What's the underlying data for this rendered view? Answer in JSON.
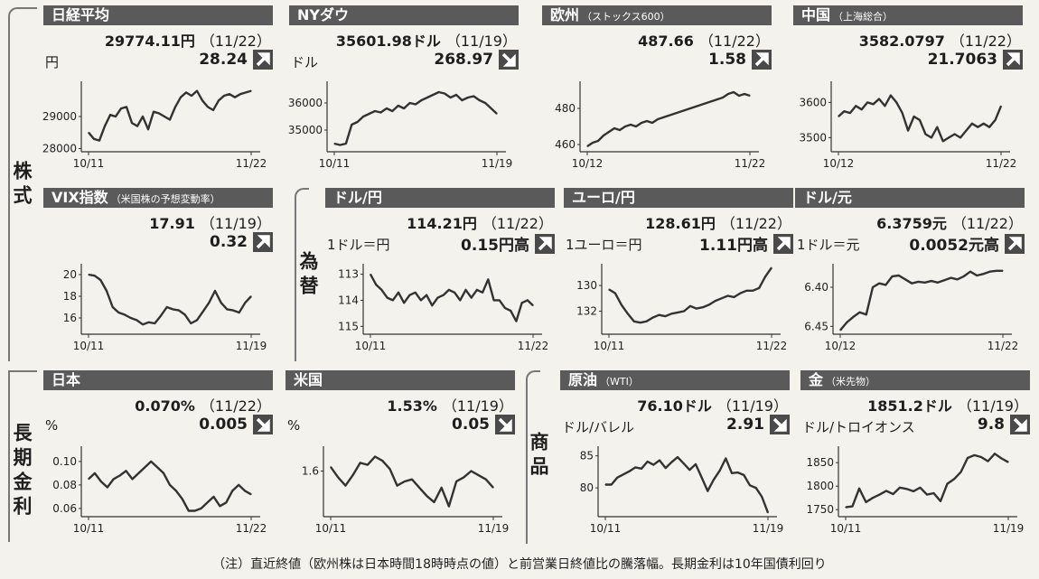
{
  "sections": {
    "stocks": "株式",
    "fx": "為替",
    "rates": "長期金利",
    "commodities": "商品"
  },
  "footnote": "（注）直近終値（欧州株は日本時間18時時点の値）と前営業日終値比の騰落幅。長期金利は10年国債利回り",
  "panels": [
    {
      "id": "nikkei",
      "title": "日経平均",
      "subtitle": "",
      "value": "29774.11円",
      "date": "（11/22）",
      "unit": "円",
      "change": "28.24",
      "direction": "up",
      "chart_data": {
        "type": "line",
        "x_start": "10/11",
        "x_end": "11/22",
        "yticks": [
          "29000",
          "28000"
        ],
        "ylim": [
          27900,
          30100
        ],
        "invert": false,
        "values": [
          28500,
          28300,
          28250,
          28700,
          29050,
          29000,
          29250,
          29300,
          28800,
          28700,
          29000,
          28600,
          29150,
          29100,
          29000,
          28900,
          29300,
          29600,
          29750,
          29650,
          29800,
          29500,
          29300,
          29200,
          29500,
          29650,
          29700,
          29600,
          29700,
          29750,
          29800
        ]
      }
    },
    {
      "id": "nydow",
      "title": "NYダウ",
      "subtitle": "",
      "value": "35601.98ドル",
      "date": "（11/19）",
      "unit": "ドル",
      "change": "268.97",
      "direction": "down",
      "chart_data": {
        "type": "line",
        "x_start": "10/11",
        "x_end": "11/19",
        "yticks": [
          "36000",
          "35000"
        ],
        "ylim": [
          34200,
          36800
        ],
        "invert": false,
        "values": [
          34500,
          34450,
          34500,
          35200,
          35300,
          35500,
          35600,
          35700,
          35650,
          35800,
          35700,
          35900,
          35800,
          36000,
          35950,
          36100,
          36200,
          36300,
          36400,
          36350,
          36200,
          36300,
          36100,
          36200,
          36250,
          36100,
          36000,
          35800,
          35600
        ]
      }
    },
    {
      "id": "europe",
      "title": "欧州",
      "subtitle": "（ストックス600）",
      "value": "487.66",
      "date": "（11/22）",
      "unit": "",
      "change": "1.58",
      "direction": "up",
      "chart_data": {
        "type": "line",
        "x_start": "10/12",
        "x_end": "11/22",
        "yticks": [
          "480",
          "460"
        ],
        "ylim": [
          456,
          495
        ],
        "invert": false,
        "values": [
          459,
          461,
          462,
          465,
          467,
          469,
          468,
          470,
          471,
          470,
          472,
          473,
          472,
          474,
          475,
          476,
          477,
          478,
          479,
          480,
          481,
          482,
          483,
          484,
          485,
          486,
          488,
          489,
          487,
          488,
          487
        ]
      }
    },
    {
      "id": "china",
      "title": "中国",
      "subtitle": "（上海総合）",
      "value": "3582.0797",
      "date": "（11/22）",
      "unit": "",
      "change": "21.7063",
      "direction": "up",
      "chart_data": {
        "type": "line",
        "x_start": "10/12",
        "x_end": "11/22",
        "yticks": [
          "3600",
          "3500"
        ],
        "ylim": [
          3460,
          3660
        ],
        "invert": false,
        "values": [
          3560,
          3575,
          3570,
          3590,
          3580,
          3600,
          3595,
          3610,
          3590,
          3620,
          3600,
          3570,
          3520,
          3560,
          3550,
          3510,
          3500,
          3530,
          3490,
          3500,
          3510,
          3500,
          3520,
          3540,
          3530,
          3540,
          3530,
          3550,
          3590
        ]
      }
    },
    {
      "id": "vix",
      "title": "VIX指数",
      "subtitle": "（米国株の予想変動率）",
      "value": "17.91",
      "date": "（11/19）",
      "unit": "",
      "change": "0.32",
      "direction": "up",
      "chart_data": {
        "type": "line",
        "x_start": "10/11",
        "x_end": "11/19",
        "yticks": [
          "20",
          "18",
          "16"
        ],
        "ylim": [
          14.5,
          21
        ],
        "invert": false,
        "values": [
          20.0,
          19.9,
          19.5,
          18.5,
          17.0,
          16.5,
          16.3,
          16.0,
          15.8,
          15.4,
          15.6,
          15.5,
          16.2,
          17.0,
          16.8,
          16.7,
          16.3,
          15.5,
          15.8,
          16.6,
          17.4,
          18.5,
          17.4,
          16.8,
          16.7,
          16.5,
          17.4,
          18.0
        ]
      }
    },
    {
      "id": "usdjpy",
      "title": "ドル/円",
      "subtitle": "",
      "value": "114.21円",
      "date": "（11/22）",
      "unit": "1ドル＝円",
      "change": "0.15円高",
      "direction": "up",
      "chart_data": {
        "type": "line",
        "x_start": "10/11",
        "x_end": "11/22",
        "yticks": [
          "113",
          "114",
          "115"
        ],
        "ylim": [
          112.6,
          115.3
        ],
        "invert": true,
        "values": [
          113.0,
          113.4,
          113.6,
          113.9,
          114.0,
          113.7,
          114.1,
          113.8,
          113.7,
          114.0,
          113.8,
          114.2,
          113.9,
          113.8,
          113.6,
          113.7,
          114.0,
          113.6,
          113.9,
          113.6,
          113.7,
          113.2,
          114.0,
          114.0,
          114.3,
          114.4,
          114.8,
          114.1,
          114.0,
          114.2
        ]
      }
    },
    {
      "id": "eurjpy",
      "title": "ユーロ/円",
      "subtitle": "",
      "value": "128.61円",
      "date": "（11/22）",
      "unit": "1ユーロ＝円",
      "change": "1.11円高",
      "direction": "up",
      "chart_data": {
        "type": "line",
        "x_start": "10/11",
        "x_end": "11/22",
        "yticks": [
          "130",
          "132"
        ],
        "ylim": [
          128.3,
          133.8
        ],
        "invert": true,
        "values": [
          130.3,
          130.6,
          131.5,
          132.2,
          132.8,
          132.9,
          132.8,
          132.5,
          132.3,
          132.4,
          132.2,
          132.1,
          132.0,
          131.6,
          131.8,
          131.7,
          131.5,
          131.2,
          131.0,
          130.8,
          130.9,
          130.6,
          130.4,
          130.4,
          130.2,
          129.3,
          128.6
        ]
      }
    },
    {
      "id": "usdcny",
      "title": "ドル/元",
      "subtitle": "",
      "value": "6.3759元",
      "date": "（11/22）",
      "unit": "1ドル＝元",
      "change": "0.0052元高",
      "direction": "up",
      "chart_data": {
        "type": "line",
        "x_start": "10/12",
        "x_end": "11/22",
        "yticks": [
          "6.40",
          "6.45"
        ],
        "ylim": [
          6.37,
          6.46
        ],
        "invert": true,
        "values": [
          6.455,
          6.445,
          6.438,
          6.432,
          6.435,
          6.4,
          6.395,
          6.397,
          6.386,
          6.385,
          6.39,
          6.395,
          6.393,
          6.394,
          6.392,
          6.394,
          6.391,
          6.388,
          6.39,
          6.386,
          6.38,
          6.385,
          6.383,
          6.38,
          6.379,
          6.379
        ]
      }
    },
    {
      "id": "jgb",
      "title": "日本",
      "subtitle": "",
      "value": "0.070%",
      "date": "（11/22）",
      "unit": "%",
      "change": "0.005",
      "direction": "down",
      "chart_data": {
        "type": "line",
        "x_start": "10/11",
        "x_end": "11/22",
        "yticks": [
          "0.10",
          "0.08",
          "0.06"
        ],
        "ylim": [
          0.053,
          0.113
        ],
        "invert": false,
        "values": [
          0.085,
          0.09,
          0.083,
          0.078,
          0.085,
          0.088,
          0.092,
          0.085,
          0.09,
          0.095,
          0.1,
          0.095,
          0.09,
          0.08,
          0.075,
          0.068,
          0.058,
          0.058,
          0.06,
          0.065,
          0.07,
          0.062,
          0.065,
          0.075,
          0.08,
          0.075,
          0.072
        ]
      }
    },
    {
      "id": "ust",
      "title": "米国",
      "subtitle": "",
      "value": "1.53%",
      "date": "（11/19）",
      "unit": "%",
      "change": "0.05",
      "direction": "down",
      "chart_data": {
        "type": "line",
        "x_start": "10/11",
        "x_end": "11/19",
        "yticks": [
          "1.6"
        ],
        "ylim": [
          1.38,
          1.72
        ],
        "invert": false,
        "values": [
          1.62,
          1.57,
          1.53,
          1.58,
          1.64,
          1.63,
          1.67,
          1.65,
          1.61,
          1.53,
          1.55,
          1.56,
          1.52,
          1.48,
          1.45,
          1.52,
          1.43,
          1.55,
          1.57,
          1.6,
          1.58,
          1.56,
          1.52
        ]
      }
    },
    {
      "id": "wti",
      "title": "原油",
      "subtitle": "（WTI）",
      "value": "76.10ドル",
      "date": "（11/19）",
      "unit": "ドル/バレル",
      "change": "2.91",
      "direction": "down",
      "chart_data": {
        "type": "line",
        "x_start": "10/11",
        "x_end": "11/19",
        "yticks": [
          "85",
          "80"
        ],
        "ylim": [
          75.5,
          86.5
        ],
        "invert": false,
        "values": [
          80.5,
          80.5,
          81.6,
          82.1,
          82.6,
          83.2,
          83.0,
          84.1,
          83.6,
          84.3,
          83.1,
          84.0,
          84.8,
          83.8,
          82.8,
          83.7,
          81.6,
          79.5,
          81.3,
          82.7,
          84.6,
          82.3,
          82.4,
          82.0,
          80.4,
          80.0,
          78.6,
          76.1
        ]
      }
    },
    {
      "id": "gold",
      "title": "金",
      "subtitle": "（米先物）",
      "value": "1851.2ドル",
      "date": "（11/19）",
      "unit": "ドル/トロイオンス",
      "change": "9.8",
      "direction": "down",
      "chart_data": {
        "type": "line",
        "x_start": "10/11",
        "x_end": "11/19",
        "yticks": [
          "1850",
          "1800",
          "1750"
        ],
        "ylim": [
          1735,
          1885
        ],
        "invert": false,
        "values": [
          1755,
          1757,
          1795,
          1766,
          1775,
          1782,
          1790,
          1783,
          1797,
          1794,
          1789,
          1797,
          1782,
          1785,
          1768,
          1805,
          1815,
          1830,
          1860,
          1866,
          1862,
          1853,
          1869,
          1859,
          1851
        ]
      }
    }
  ]
}
